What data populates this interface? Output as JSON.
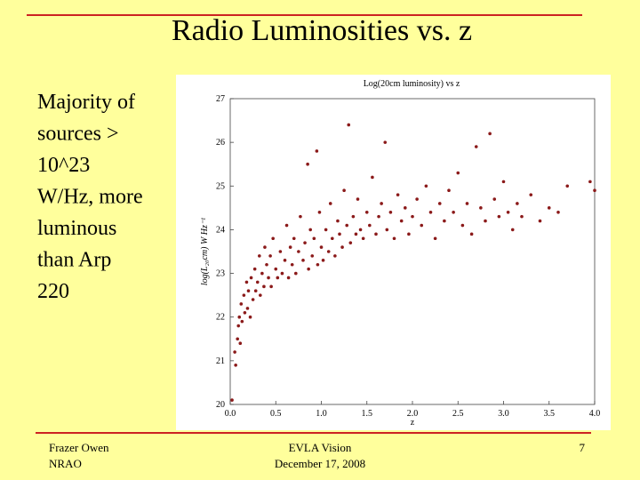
{
  "slide_title": "Radio Luminosities vs. z",
  "body_lines": [
    "Majority of",
    "sources >",
    "10^23",
    "W/Hz, more",
    "luminous",
    "than Arp",
    "220"
  ],
  "footer": {
    "author": [
      "Frazer Owen",
      "NRAO"
    ],
    "center": [
      "EVLA Vision",
      "December 17, 2008"
    ],
    "page": "7"
  },
  "chart_data": {
    "type": "scatter",
    "title": "Log(20cm luminosity) vs z",
    "x_label": "z",
    "y_label": "log(L₂₀cm) W Hz⁻¹",
    "color": "#8b1a1a",
    "xlim": [
      0,
      4
    ],
    "ylim": [
      20,
      27
    ],
    "xticks": [
      {
        "value": 0,
        "label": "0.0"
      },
      0.5,
      {
        "value": 1,
        "label": "1.0"
      },
      1.5,
      {
        "value": 2,
        "label": "2.0"
      },
      2.5,
      {
        "value": 3,
        "label": "3.0"
      },
      3.5,
      {
        "value": 4,
        "label": "4.0"
      }
    ],
    "yticks": [
      20,
      21,
      22,
      23,
      24,
      25,
      26,
      27
    ],
    "x": [
      0.02,
      0.05,
      0.06,
      0.08,
      0.09,
      0.1,
      0.11,
      0.12,
      0.13,
      0.15,
      0.16,
      0.18,
      0.19,
      0.2,
      0.22,
      0.23,
      0.25,
      0.27,
      0.28,
      0.3,
      0.32,
      0.33,
      0.35,
      0.37,
      0.38,
      0.4,
      0.42,
      0.44,
      0.45,
      0.47,
      0.5,
      0.52,
      0.55,
      0.57,
      0.6,
      0.62,
      0.64,
      0.66,
      0.68,
      0.7,
      0.72,
      0.75,
      0.77,
      0.8,
      0.82,
      0.85,
      0.86,
      0.88,
      0.9,
      0.92,
      0.95,
      0.96,
      0.98,
      1.0,
      1.02,
      1.05,
      1.08,
      1.1,
      1.12,
      1.15,
      1.18,
      1.2,
      1.23,
      1.25,
      1.28,
      1.3,
      1.32,
      1.35,
      1.38,
      1.4,
      1.43,
      1.46,
      1.5,
      1.53,
      1.56,
      1.6,
      1.63,
      1.66,
      1.7,
      1.72,
      1.76,
      1.8,
      1.84,
      1.88,
      1.92,
      1.96,
      2.0,
      2.05,
      2.1,
      2.15,
      2.2,
      2.25,
      2.3,
      2.35,
      2.4,
      2.45,
      2.5,
      2.55,
      2.6,
      2.65,
      2.7,
      2.75,
      2.8,
      2.85,
      2.9,
      2.95,
      3.0,
      3.05,
      3.1,
      3.15,
      3.2,
      3.3,
      3.4,
      3.5,
      3.6,
      3.7,
      3.95,
      4.0
    ],
    "values": [
      20.1,
      21.2,
      20.9,
      21.5,
      21.8,
      22.0,
      21.4,
      22.3,
      21.9,
      22.5,
      22.1,
      22.8,
      22.2,
      22.6,
      22.0,
      22.9,
      22.4,
      23.1,
      22.6,
      22.8,
      23.4,
      22.5,
      23.0,
      22.7,
      23.6,
      23.2,
      22.9,
      23.4,
      22.7,
      23.8,
      23.1,
      22.9,
      23.5,
      23.0,
      23.3,
      24.1,
      22.9,
      23.6,
      23.2,
      23.8,
      23.0,
      23.5,
      24.3,
      23.3,
      23.7,
      25.5,
      23.1,
      24.0,
      23.4,
      23.8,
      25.8,
      23.2,
      24.4,
      23.6,
      23.3,
      24.0,
      23.5,
      24.6,
      23.8,
      23.4,
      24.2,
      23.9,
      23.6,
      24.9,
      24.1,
      26.4,
      23.7,
      24.3,
      23.9,
      24.7,
      24.0,
      23.8,
      24.4,
      24.1,
      25.2,
      23.9,
      24.3,
      24.6,
      26.0,
      24.0,
      24.4,
      23.8,
      24.8,
      24.2,
      24.5,
      23.9,
      24.3,
      24.7,
      24.1,
      25.0,
      24.4,
      23.8,
      24.6,
      24.2,
      24.9,
      24.4,
      25.3,
      24.1,
      24.6,
      23.9,
      25.9,
      24.5,
      24.2,
      26.2,
      24.7,
      24.3,
      25.1,
      24.4,
      24.0,
      24.6,
      24.3,
      24.8,
      24.2,
      24.5,
      24.4,
      25.0,
      25.1,
      24.9
    ]
  }
}
